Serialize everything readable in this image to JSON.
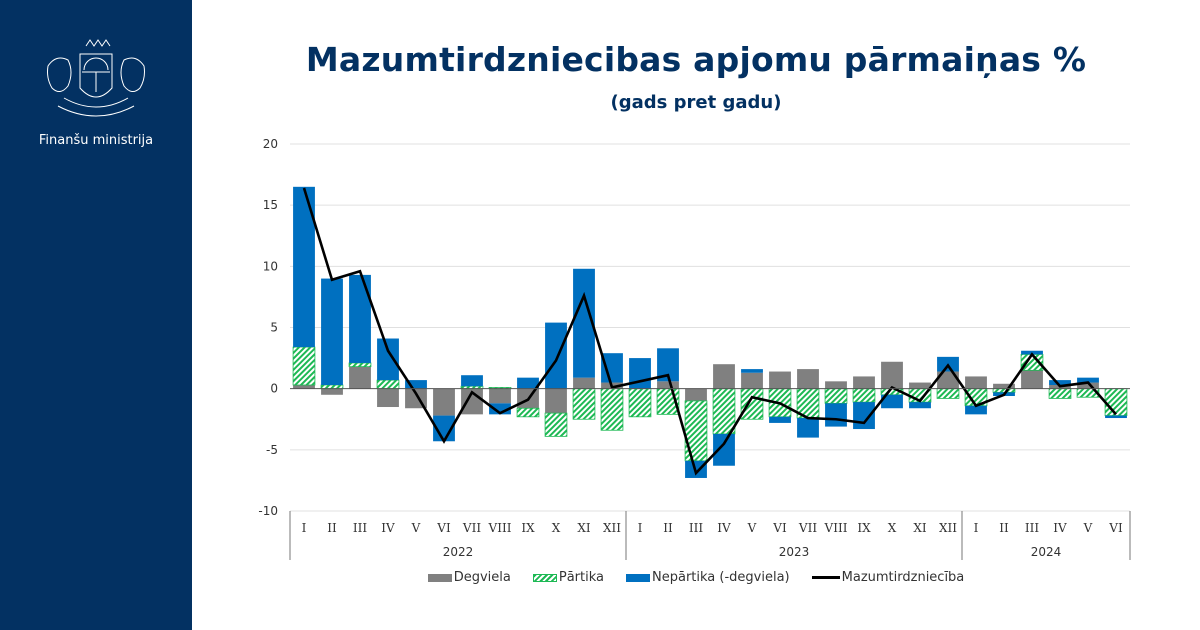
{
  "sidebar": {
    "logo_icon": "latvia-coat-of-arms-icon",
    "ministry_name": "Finanšu ministrija",
    "background_color": "#033162"
  },
  "header": {
    "title": "Mazumtirdzniecibas apjomu pārmaiņas %",
    "subtitle": "(gads pret gadu)"
  },
  "chart_data": {
    "type": "bar",
    "stacked": true,
    "title": "Mazumtirdzniecibas apjomu pārmaiņas %",
    "subtitle": "(gads pret gadu)",
    "xlabel": "",
    "ylabel": "",
    "ylim": [
      -10,
      20
    ],
    "yticks": [
      -10,
      -5,
      0,
      5,
      10,
      15,
      20
    ],
    "grid": true,
    "legend_position": "bottom",
    "years": [
      {
        "label": "2022",
        "months": [
          "I",
          "II",
          "III",
          "IV",
          "V",
          "VI",
          "VII",
          "VIII",
          "IX",
          "X",
          "XI",
          "XII"
        ]
      },
      {
        "label": "2023",
        "months": [
          "I",
          "II",
          "III",
          "IV",
          "V",
          "VI",
          "VII",
          "VIII",
          "IX",
          "X",
          "XI",
          "XII"
        ]
      },
      {
        "label": "2024",
        "months": [
          "I",
          "II",
          "III",
          "IV",
          "V",
          "VI"
        ]
      }
    ],
    "series": [
      {
        "name": "Degviela",
        "kind": "bar",
        "color": "#808080",
        "pattern": "solid",
        "values": [
          0.3,
          -0.5,
          1.8,
          -1.5,
          -1.6,
          -2.2,
          -2.1,
          -1.2,
          -1.6,
          -2.0,
          0.9,
          0.5,
          0.0,
          0.6,
          -1.0,
          2.0,
          1.3,
          1.4,
          1.6,
          0.6,
          1.0,
          2.2,
          0.5,
          1.4,
          1.0,
          0.4,
          1.5,
          0.3,
          0.5,
          0.0
        ]
      },
      {
        "name": "Pārtika",
        "kind": "bar",
        "color": "#1db954",
        "pattern": "hatched",
        "values": [
          3.1,
          0.3,
          0.3,
          0.7,
          0.0,
          0.0,
          0.2,
          0.1,
          -0.7,
          -1.9,
          -2.5,
          -3.4,
          -2.3,
          -2.1,
          -4.9,
          -3.7,
          -2.5,
          -2.3,
          -2.4,
          -1.2,
          -1.1,
          -0.5,
          -1.1,
          -0.8,
          -1.4,
          -0.3,
          1.3,
          -0.8,
          -0.7,
          -2.2
        ]
      },
      {
        "name": "Nepārtika (-degviela)",
        "kind": "bar",
        "color": "#0070c0",
        "pattern": "solid",
        "values": [
          13.1,
          8.7,
          7.2,
          3.4,
          0.7,
          -2.1,
          0.9,
          -0.9,
          0.9,
          5.4,
          8.9,
          2.4,
          2.5,
          2.7,
          -1.4,
          -2.6,
          0.3,
          -0.5,
          -1.6,
          -1.9,
          -2.2,
          -1.1,
          -0.5,
          1.2,
          -0.7,
          -0.3,
          0.3,
          0.4,
          0.4,
          -0.2
        ]
      },
      {
        "name": "Mazumtirdzniecība",
        "kind": "line",
        "color": "#000000",
        "values": [
          16.4,
          8.9,
          9.6,
          3.1,
          -0.4,
          -4.3,
          -0.3,
          -2.0,
          -0.9,
          2.3,
          7.6,
          0.1,
          0.6,
          1.1,
          -6.9,
          -4.5,
          -0.7,
          -1.2,
          -2.4,
          -2.5,
          -2.8,
          0.1,
          -1.0,
          1.9,
          -1.4,
          -0.5,
          2.8,
          0.2,
          0.5,
          -2.1
        ]
      }
    ]
  }
}
